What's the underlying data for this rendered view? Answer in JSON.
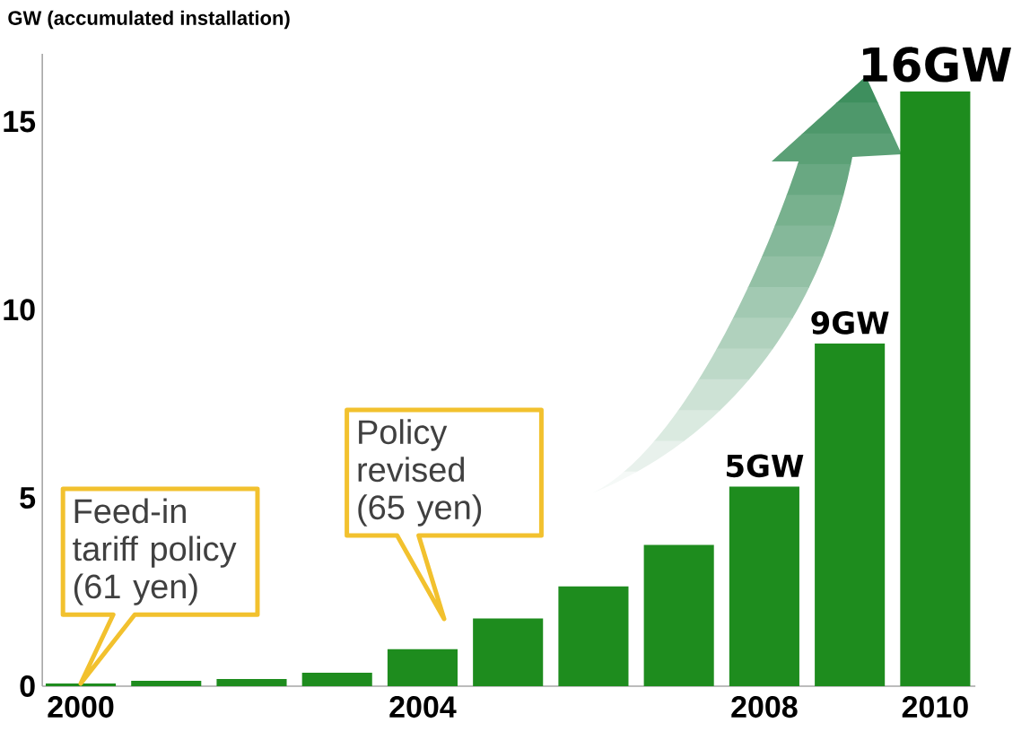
{
  "chart_data": {
    "type": "bar",
    "ylabel": "GW (accumulated installation)",
    "categories": [
      "2000",
      null,
      null,
      null,
      "2004",
      null,
      null,
      null,
      "2008",
      null,
      "2010"
    ],
    "values": [
      0.07,
      0.14,
      0.19,
      0.36,
      0.98,
      1.8,
      2.65,
      3.75,
      5.3,
      9.1,
      15.8
    ],
    "value_labels": [
      null,
      null,
      null,
      null,
      null,
      null,
      null,
      null,
      "5GW",
      "9GW",
      "16GW"
    ],
    "color": "#1e8c1e",
    "ylim": [
      0,
      16.8
    ],
    "yticks": [
      0,
      5,
      10,
      15
    ],
    "annotations": [
      {
        "text": "Feed-in tariff policy (61 yen)",
        "x": "2000",
        "y": 0.07
      },
      "Policy revised (65 yen)"
    ]
  }
}
